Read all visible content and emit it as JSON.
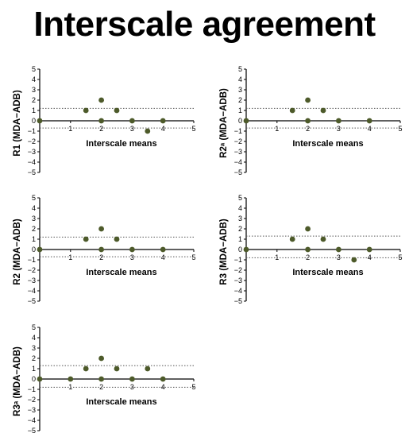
{
  "title": "Interscale agreement",
  "colors": {
    "point": "#4d5a2a",
    "axis": "#000000",
    "limit_line": "#555555"
  },
  "chart_data": [
    {
      "type": "scatter",
      "ylabel": "R1 (MDA−ADB)",
      "xlabel": "Interscale means",
      "xlim": [
        0,
        5
      ],
      "ylim": [
        -5,
        5
      ],
      "xticks": [
        "1",
        "2",
        "3",
        "4",
        "5"
      ],
      "yticks": [
        "5",
        "4",
        "3",
        "2",
        "1",
        "0",
        "−1",
        "−2",
        "−3",
        "−4",
        "−5"
      ],
      "upper_limit": 1.2,
      "lower_limit": -0.7,
      "points": [
        {
          "x": 0,
          "y": 0
        },
        {
          "x": 1.5,
          "y": 1
        },
        {
          "x": 2,
          "y": 2
        },
        {
          "x": 2,
          "y": 0
        },
        {
          "x": 2.5,
          "y": 1
        },
        {
          "x": 3,
          "y": 0
        },
        {
          "x": 3.5,
          "y": -1
        },
        {
          "x": 4,
          "y": 0
        }
      ]
    },
    {
      "type": "scatter",
      "ylabel": "R2ᵃ (MDA−ADB)",
      "xlabel": "Interscale means",
      "xlim": [
        0,
        5
      ],
      "ylim": [
        -5,
        5
      ],
      "xticks": [
        "1",
        "2",
        "3",
        "4",
        "5"
      ],
      "yticks": [
        "5",
        "4",
        "3",
        "2",
        "1",
        "0",
        "−1",
        "−2",
        "−3",
        "−4",
        "−5"
      ],
      "upper_limit": 1.2,
      "lower_limit": -0.7,
      "points": [
        {
          "x": 0,
          "y": 0
        },
        {
          "x": 1.5,
          "y": 1
        },
        {
          "x": 2,
          "y": 2
        },
        {
          "x": 2,
          "y": 0
        },
        {
          "x": 2.5,
          "y": 1
        },
        {
          "x": 3,
          "y": 0
        },
        {
          "x": 4,
          "y": 0
        }
      ]
    },
    {
      "type": "scatter",
      "ylabel": "R2 (MDA−ADB)",
      "xlabel": "Interscale means",
      "xlim": [
        0,
        5
      ],
      "ylim": [
        -5,
        5
      ],
      "xticks": [
        "1",
        "2",
        "3",
        "4",
        "5"
      ],
      "yticks": [
        "5",
        "4",
        "3",
        "2",
        "1",
        "0",
        "−1",
        "−2",
        "−3",
        "−4",
        "−5"
      ],
      "upper_limit": 1.2,
      "lower_limit": -0.7,
      "points": [
        {
          "x": 0,
          "y": 0
        },
        {
          "x": 1.5,
          "y": 1
        },
        {
          "x": 2,
          "y": 2
        },
        {
          "x": 2,
          "y": 0
        },
        {
          "x": 2.5,
          "y": 1
        },
        {
          "x": 3,
          "y": 0
        },
        {
          "x": 4,
          "y": 0
        }
      ]
    },
    {
      "type": "scatter",
      "ylabel": "R3 (MDA−ADB)",
      "xlabel": "Interscale means",
      "xlim": [
        0,
        5
      ],
      "ylim": [
        -5,
        5
      ],
      "xticks": [
        "1",
        "2",
        "3",
        "4",
        "5"
      ],
      "yticks": [
        "5",
        "4",
        "3",
        "2",
        "1",
        "0",
        "−1",
        "−2",
        "−3",
        "−4",
        "−5"
      ],
      "upper_limit": 1.3,
      "lower_limit": -0.8,
      "points": [
        {
          "x": 0,
          "y": 0
        },
        {
          "x": 1.5,
          "y": 1
        },
        {
          "x": 2,
          "y": 2
        },
        {
          "x": 2,
          "y": 0
        },
        {
          "x": 2.5,
          "y": 1
        },
        {
          "x": 3,
          "y": 0
        },
        {
          "x": 3.5,
          "y": -1
        },
        {
          "x": 4,
          "y": 0
        }
      ]
    },
    {
      "type": "scatter",
      "ylabel": "R3ᵃ (MDA−ADB)",
      "xlabel": "Interscale means",
      "xlim": [
        0,
        5
      ],
      "ylim": [
        -5,
        5
      ],
      "xticks": [
        "1",
        "2",
        "3",
        "4",
        "5"
      ],
      "yticks": [
        "5",
        "4",
        "3",
        "2",
        "1",
        "0",
        "−1",
        "−2",
        "−3",
        "−4",
        "−5"
      ],
      "upper_limit": 1.3,
      "lower_limit": -0.8,
      "points": [
        {
          "x": 0,
          "y": 0
        },
        {
          "x": 1,
          "y": 0
        },
        {
          "x": 1.5,
          "y": 1
        },
        {
          "x": 2,
          "y": 2
        },
        {
          "x": 2,
          "y": 0
        },
        {
          "x": 2.5,
          "y": 1
        },
        {
          "x": 3,
          "y": 0
        },
        {
          "x": 3.5,
          "y": 1
        },
        {
          "x": 4,
          "y": 0
        }
      ]
    }
  ]
}
